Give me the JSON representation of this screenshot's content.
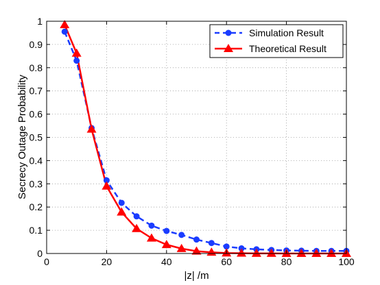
{
  "chart_data": {
    "type": "line",
    "title": "",
    "xlabel": "|z| /m",
    "ylabel": "Secrecy Outage Probability",
    "xlim": [
      0,
      100
    ],
    "ylim": [
      0,
      1
    ],
    "xticks": [
      "0",
      "20",
      "40",
      "60",
      "80",
      "100"
    ],
    "yticks": [
      "0",
      "0.1",
      "0.2",
      "0.3",
      "0.4",
      "0.5",
      "0.6",
      "0.7",
      "0.8",
      "0.9",
      "1"
    ],
    "grid": true,
    "legend_position": "top-right",
    "series": [
      {
        "name": "Simulation Result",
        "color": "#1a3cff",
        "line_style": "dashed",
        "marker": "circle",
        "x": [
          6,
          10,
          15,
          20,
          25,
          30,
          35,
          40,
          45,
          50,
          55,
          60,
          65,
          70,
          75,
          80,
          85,
          90,
          95,
          100
        ],
        "y": [
          0.955,
          0.83,
          0.54,
          0.315,
          0.218,
          0.16,
          0.12,
          0.097,
          0.08,
          0.06,
          0.045,
          0.03,
          0.022,
          0.018,
          0.015,
          0.013,
          0.012,
          0.011,
          0.011,
          0.011
        ]
      },
      {
        "name": "Theoretical Result",
        "color": "#ff0000",
        "line_style": "solid",
        "marker": "triangle",
        "x": [
          6,
          10,
          15,
          20,
          25,
          30,
          35,
          40,
          45,
          50,
          55,
          60,
          65,
          70,
          75,
          80,
          85,
          90,
          95,
          100
        ],
        "y": [
          0.985,
          0.862,
          0.535,
          0.29,
          0.178,
          0.107,
          0.066,
          0.038,
          0.021,
          0.01,
          0.005,
          0.002,
          0.001,
          0.0005,
          0.0002,
          0.0001,
          0.0001,
          0.0,
          0.0,
          0.0
        ]
      }
    ]
  }
}
